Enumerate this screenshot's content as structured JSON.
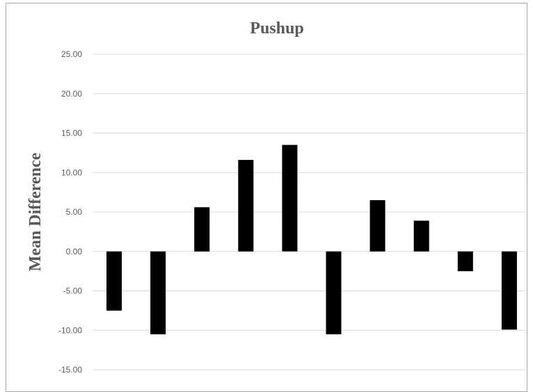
{
  "chart_data": {
    "type": "bar",
    "title": "Pushup",
    "xlabel": "",
    "ylabel": "Mean Difference",
    "ylim": [
      -15,
      25
    ],
    "yticks": [
      "25.00",
      "20.00",
      "15.00",
      "10.00",
      "5.00",
      "0.00",
      "-5.00",
      "-10.00",
      "-15.00"
    ],
    "ytick_values": [
      25,
      20,
      15,
      10,
      5,
      0,
      -5,
      -10,
      -15
    ],
    "values": [
      -7.5,
      -10.5,
      5.6,
      11.6,
      13.5,
      -10.5,
      6.5,
      3.9,
      -2.5,
      -9.9
    ],
    "bar_color": "#000000",
    "grid": true,
    "legend": "none"
  }
}
